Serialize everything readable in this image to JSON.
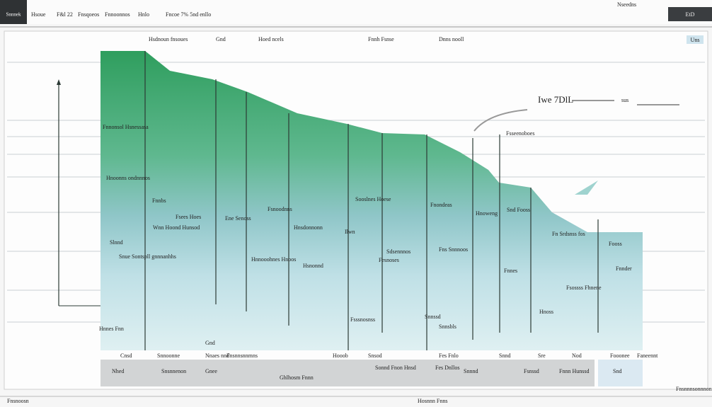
{
  "toolbar": {
    "brand": "Snnnek",
    "items": [
      "Hsoue",
      "F&l 22",
      "Fnsqoeos",
      "Fnnoonnos",
      "Hnlo",
      "Fncoe 7% 5nd enllo"
    ],
    "right_text": "Nseedns",
    "right_button": "EtD"
  },
  "sub_header": {
    "items": [
      "Hsdnoun fnsoues",
      "Gnd",
      "Hoed ncels",
      "Fnnh Fsnse",
      "Dnns nooll"
    ],
    "badge": "Uns"
  },
  "panel": {
    "title": "Iwe 7DlL",
    "tag": "sus"
  },
  "labels": [
    "Fnnonsol Hsnessasa",
    "Hnoonns ondnnnos",
    "Fnnbs",
    "Fsees Hoes",
    "Wnn Hoond Hunsod",
    "Slnnd",
    "Snue Sontspll gnnnanhhs",
    "Hnnooohnes Hnoos",
    "Sooslnes Hoese",
    "Fsnoodnns",
    "Ene Senoss",
    "Hnsdonnonn",
    "Ilwn",
    "Sdsennnos",
    "Fesnoses",
    "Hsnonnd",
    "Fns Snnnoos",
    "Fnondeas",
    "Hnoweng",
    "Snd Fooss",
    "Fn Srdsnss fos",
    "Fooss",
    "Fnnes",
    "Fsossss Fhnene",
    "Hnoss",
    "Snnssd",
    "Snnsbls",
    "Fsssnosnss",
    "Fsseenoboes",
    "Hnnes Fnn",
    "Fnnder"
  ],
  "x_labels": [
    "Cnsd",
    "Snnoonne",
    "Nnaes nnd",
    "Fnsnnsnnmns",
    "Hooob",
    "Snsod",
    "Fes Fnlo",
    "Snnd",
    "Sre",
    "Nod",
    "Fooonee",
    "Faneennt",
    "Gnd"
  ],
  "footer": [
    "Nhed",
    "Snsnnenon",
    "Gnee",
    "Ghlhosm Fnnn",
    "Sonnd Fnon Hnsd",
    "Fes Dnllos",
    "Snnnd",
    "Fsnssd",
    "Fnnn Hunssd",
    "Snd"
  ],
  "status": {
    "left": "Fnsnoosn",
    "center": "Hosnnn Fnns",
    "right": "Fnsnnnsonnnon"
  }
}
